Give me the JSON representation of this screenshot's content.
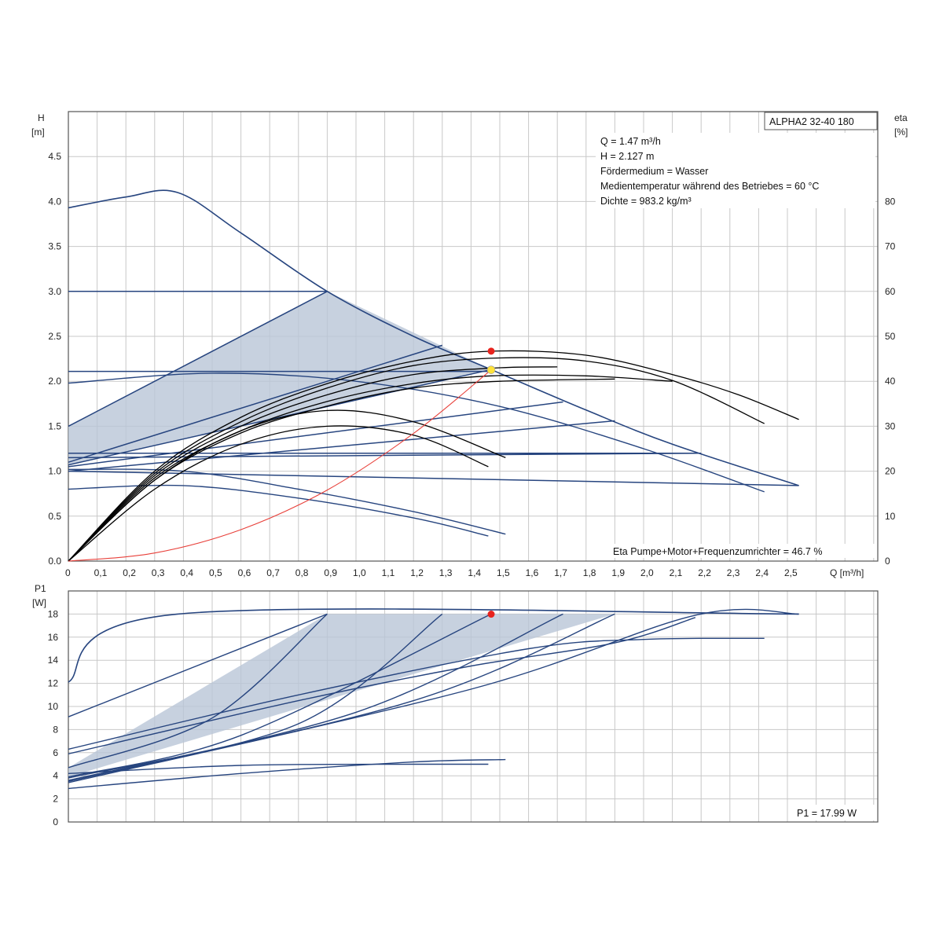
{
  "colors": {
    "curve": "#27457f",
    "fill": "#b9c5d7",
    "eta": "#000000",
    "system": "#e8403a",
    "op_point": "#e8231d",
    "op_point_alt": "#ffe23a",
    "grid": "#c8c8c8",
    "frame": "#555555"
  },
  "chart_data": [
    {
      "type": "line",
      "model": "ALPHA2 32-40 180",
      "ylabel": "H",
      "yunit": "[m]",
      "y2label": "eta",
      "y2unit": "[%]",
      "xlabel": "Q [m³/h]",
      "xlim": [
        0,
        2.6
      ],
      "ylim": [
        0,
        5.0
      ],
      "y2lim": [
        0,
        100
      ],
      "grid": true,
      "x_ticks": [
        "0",
        "0,1",
        "0,2",
        "0,3",
        "0,4",
        "0,5",
        "0,6",
        "0,7",
        "0,8",
        "0,9",
        "1,0",
        "1,1",
        "1,2",
        "1,3",
        "1,4",
        "1,5",
        "1,6",
        "1,7",
        "1,8",
        "1,9",
        "2,0",
        "2,1",
        "2,2",
        "2,3",
        "2,4",
        "2,5"
      ],
      "y_ticks": [
        "0.0",
        "0.5",
        "1.0",
        "1.5",
        "2.0",
        "2.5",
        "3.0",
        "3.5",
        "4.0",
        "4.5"
      ],
      "y2_ticks": [
        "0",
        "10",
        "20",
        "30",
        "40",
        "50",
        "60",
        "70",
        "80"
      ],
      "info_lines": [
        "Q = 1.47 m³/h",
        "H = 2.127 m",
        "Fördermedium = Wasser",
        "Medientemperatur während des Betriebes = 60 °C",
        "Dichte = 983.2 kg/m³"
      ],
      "eta_note": "Eta Pumpe+Motor+Frequenzumrichter = 46.7 %",
      "shaded_region": [
        [
          0,
          1.5
        ],
        [
          0.9,
          3.0
        ],
        [
          1.47,
          2.13
        ],
        [
          2.54,
          0.84
        ],
        [
          1.47,
          2.13
        ],
        [
          0,
          1.07
        ]
      ],
      "series": [
        {
          "role": "max-curve",
          "points": [
            [
              0,
              3.93
            ],
            [
              0.2,
              4.05
            ],
            [
              0.38,
              4.1
            ],
            [
              0.6,
              3.65
            ],
            [
              0.9,
              3.0
            ],
            [
              1.2,
              2.5
            ],
            [
              1.47,
              2.13
            ],
            [
              1.8,
              1.68
            ],
            [
              2.1,
              1.3
            ],
            [
              2.54,
              0.84
            ]
          ]
        },
        {
          "role": "const-pressure",
          "points": [
            [
              0,
              3.0
            ],
            [
              0.9,
              3.0
            ]
          ]
        },
        {
          "role": "const-pressure",
          "points": [
            [
              0,
              2.11
            ],
            [
              1.47,
              2.11
            ]
          ]
        },
        {
          "role": "const-pressure",
          "points": [
            [
              0,
              1.2
            ],
            [
              2.2,
              1.2
            ]
          ]
        },
        {
          "role": "const-pressure",
          "points": [
            [
              0,
              1.15
            ],
            [
              2.2,
              1.2
            ]
          ]
        },
        {
          "role": "prop-pressure",
          "points": [
            [
              0,
              1.5
            ],
            [
              0.9,
              3.0
            ]
          ]
        },
        {
          "role": "prop-pressure",
          "points": [
            [
              0,
              1.07
            ],
            [
              1.47,
              2.13
            ]
          ]
        },
        {
          "role": "prop-pressure",
          "points": [
            [
              0,
              1.1
            ],
            [
              1.3,
              2.4
            ]
          ]
        },
        {
          "role": "prop-pressure",
          "points": [
            [
              0,
              1.05
            ],
            [
              1.72,
              1.77
            ]
          ]
        },
        {
          "role": "prop-pressure",
          "points": [
            [
              0,
              1.0
            ],
            [
              1.9,
              1.56
            ]
          ]
        },
        {
          "role": "prop-pressure",
          "points": [
            [
              0,
              1.0
            ],
            [
              2.54,
              0.84
            ]
          ]
        },
        {
          "role": "speed-curve",
          "points": [
            [
              0,
              1.98
            ],
            [
              0.5,
              2.09
            ],
            [
              1.0,
              2.0
            ],
            [
              1.5,
              1.72
            ],
            [
              2.0,
              1.25
            ],
            [
              2.42,
              0.77
            ]
          ]
        },
        {
          "role": "speed-curve",
          "points": [
            [
              0,
              1.02
            ],
            [
              0.4,
              1.0
            ],
            [
              0.8,
              0.8
            ],
            [
              1.2,
              0.55
            ],
            [
              1.52,
              0.3
            ]
          ]
        },
        {
          "role": "speed-curve",
          "points": [
            [
              0,
              0.8
            ],
            [
              0.4,
              0.84
            ],
            [
              0.8,
              0.7
            ],
            [
              1.2,
              0.48
            ],
            [
              1.46,
              0.28
            ]
          ]
        },
        {
          "role": "eta",
          "points": [
            [
              0,
              0
            ],
            [
              0.3,
              20
            ],
            [
              0.6,
              32
            ],
            [
              0.9,
              39.5
            ],
            [
              1.2,
              44.5
            ],
            [
              1.47,
              46.7
            ],
            [
              1.8,
              45.8
            ],
            [
              2.1,
              41.5
            ],
            [
              2.33,
              37
            ],
            [
              2.54,
              31.5
            ]
          ]
        },
        {
          "role": "eta",
          "points": [
            [
              0,
              0
            ],
            [
              0.3,
              19.5
            ],
            [
              0.6,
              31
            ],
            [
              0.9,
              38.5
            ],
            [
              1.2,
              43.5
            ],
            [
              1.5,
              45.2
            ],
            [
              1.8,
              44.5
            ],
            [
              2.1,
              40.2
            ],
            [
              2.42,
              30.6
            ]
          ]
        },
        {
          "role": "eta",
          "points": [
            [
              0,
              0
            ],
            [
              0.3,
              19
            ],
            [
              0.6,
              30
            ],
            [
              0.9,
              37
            ],
            [
              1.2,
              41.5
            ],
            [
              1.5,
              43
            ],
            [
              1.7,
              43.2
            ]
          ]
        },
        {
          "role": "eta",
          "points": [
            [
              0,
              0
            ],
            [
              0.3,
              18.5
            ],
            [
              0.6,
              29
            ],
            [
              0.9,
              35.5
            ],
            [
              1.2,
              39.5
            ],
            [
              1.47,
              41.2
            ],
            [
              1.8,
              41.2
            ],
            [
              2.1,
              40
            ]
          ]
        },
        {
          "role": "eta",
          "points": [
            [
              0,
              0
            ],
            [
              0.3,
              18
            ],
            [
              0.6,
              28.5
            ],
            [
              0.9,
              34.5
            ],
            [
              1.2,
              38.5
            ],
            [
              1.5,
              40
            ],
            [
              1.9,
              40.5
            ]
          ]
        },
        {
          "role": "eta",
          "points": [
            [
              0,
              0
            ],
            [
              0.3,
              18
            ],
            [
              0.6,
              29
            ],
            [
              0.9,
              33.5
            ],
            [
              1.2,
              31
            ],
            [
              1.52,
              23
            ]
          ]
        },
        {
          "role": "eta",
          "points": [
            [
              0,
              0
            ],
            [
              0.3,
              16
            ],
            [
              0.6,
              26
            ],
            [
              0.9,
              30
            ],
            [
              1.2,
              28
            ],
            [
              1.46,
              21
            ]
          ]
        },
        {
          "role": "system-curve",
          "points": [
            [
              0,
              0
            ],
            [
              0.3,
              0.09
            ],
            [
              0.6,
              0.35
            ],
            [
              0.9,
              0.79
            ],
            [
              1.2,
              1.42
            ],
            [
              1.47,
              2.127
            ]
          ]
        }
      ],
      "operating_point": {
        "Q": 1.47,
        "H": 2.127,
        "eta": 46.7
      }
    },
    {
      "type": "line",
      "ylabel": "P1",
      "yunit": "[W]",
      "xlim": [
        0,
        2.6
      ],
      "ylim": [
        0,
        20
      ],
      "grid": true,
      "y_ticks": [
        "0",
        "2",
        "4",
        "6",
        "8",
        "10",
        "12",
        "14",
        "16",
        "18"
      ],
      "p1_note": "P1 = 17.99 W",
      "shaded_region": [
        [
          0,
          4.7
        ],
        [
          0.9,
          18
        ],
        [
          1.9,
          18
        ],
        [
          0,
          3.9
        ]
      ],
      "series": [
        {
          "role": "p1-max",
          "points": [
            [
              0,
              12.1
            ],
            [
              0.38,
              18
            ],
            [
              2.54,
              18
            ]
          ]
        },
        {
          "role": "p1-const",
          "points": [
            [
              0,
              9.1
            ],
            [
              0.9,
              18
            ]
          ]
        },
        {
          "role": "p1-const",
          "points": [
            [
              0,
              4.7
            ],
            [
              0.5,
              9
            ],
            [
              0.9,
              18
            ]
          ]
        },
        {
          "role": "p1-prop",
          "points": [
            [
              0,
              3.9
            ],
            [
              0.6,
              7.5
            ],
            [
              1.47,
              18
            ]
          ]
        },
        {
          "role": "p1-prop",
          "points": [
            [
              0,
              3.8
            ],
            [
              0.8,
              8.5
            ],
            [
              1.3,
              18
            ]
          ]
        },
        {
          "role": "p1-prop",
          "points": [
            [
              0,
              3.6
            ],
            [
              1.0,
              9.5
            ],
            [
              1.72,
              18
            ]
          ]
        },
        {
          "role": "p1-prop",
          "points": [
            [
              0,
              3.5
            ],
            [
              1.2,
              10.5
            ],
            [
              1.9,
              18
            ]
          ]
        },
        {
          "role": "p1-prop",
          "points": [
            [
              0,
              3.4
            ],
            [
              1.4,
              11.5
            ],
            [
              2.18,
              17.9
            ],
            [
              2.54,
              18
            ]
          ]
        },
        {
          "role": "p1-speed",
          "points": [
            [
              0,
              6.3
            ],
            [
              0.8,
              11
            ],
            [
              1.6,
              15
            ],
            [
              2.0,
              15.8
            ],
            [
              2.42,
              15.9
            ]
          ]
        },
        {
          "role": "p1-speed",
          "points": [
            [
              0,
              5.9
            ],
            [
              0.8,
              10.5
            ],
            [
              1.4,
              13.5
            ],
            [
              1.9,
              15.5
            ],
            [
              2.18,
              17.7
            ]
          ]
        },
        {
          "role": "p1-low",
          "points": [
            [
              0,
              2.9
            ],
            [
              0.6,
              4.2
            ],
            [
              1.2,
              5.2
            ],
            [
              1.52,
              5.4
            ]
          ]
        },
        {
          "role": "p1-low",
          "points": [
            [
              0,
              4.2
            ],
            [
              0.6,
              4.9
            ],
            [
              1.2,
              5.0
            ],
            [
              1.46,
              5.0
            ]
          ]
        }
      ],
      "operating_point": {
        "Q": 1.47,
        "P1": 17.99
      }
    }
  ]
}
